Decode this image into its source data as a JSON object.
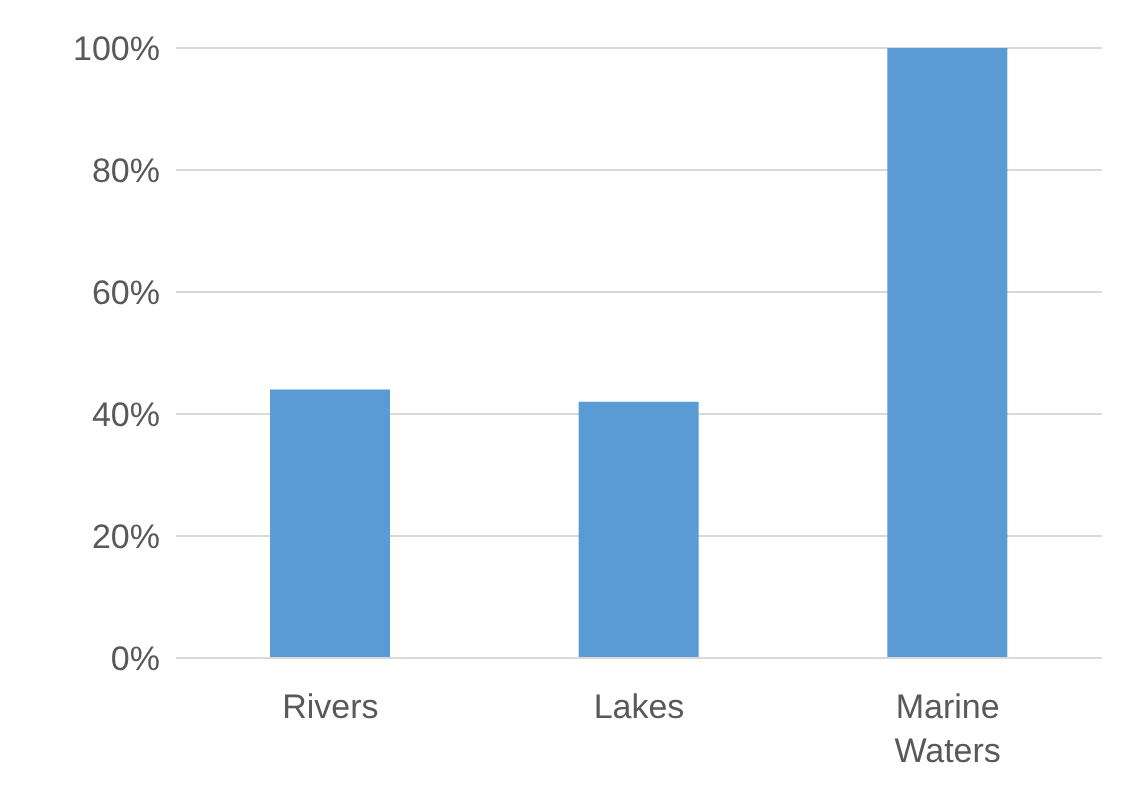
{
  "chart_data": {
    "type": "bar",
    "categories": [
      "Rivers",
      "Lakes",
      "Marine Waters"
    ],
    "values": [
      44,
      42,
      100
    ],
    "color": "#5b9bd5",
    "ylim": [
      0,
      100
    ],
    "yticks": [
      {
        "value": 0,
        "label": "0%"
      },
      {
        "value": 20,
        "label": "20%"
      },
      {
        "value": 40,
        "label": "40%"
      },
      {
        "value": 60,
        "label": "60%"
      },
      {
        "value": 80,
        "label": "80%"
      },
      {
        "value": 100,
        "label": "100%"
      }
    ],
    "grid": "y"
  }
}
